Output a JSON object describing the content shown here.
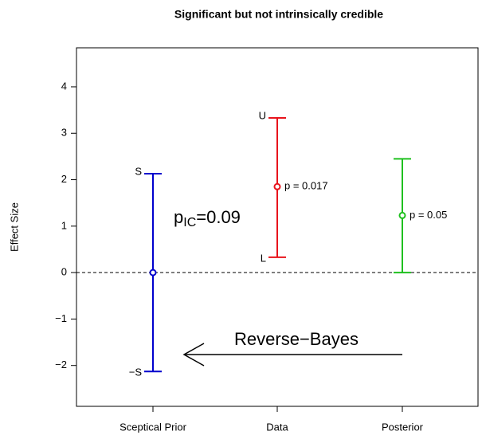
{
  "chart_data": {
    "type": "errorbar",
    "title": "Significant but not intrinsically credible",
    "ylabel": "Effect Size",
    "categories": [
      "Sceptical Prior",
      "Data",
      "Posterior"
    ],
    "values": [
      0,
      1.85,
      1.23
    ],
    "lower": [
      -2.13,
      0.33,
      0
    ],
    "upper": [
      2.13,
      3.33,
      2.45
    ],
    "colors": [
      "#0000cd",
      "#e8141c",
      "#1fc01f"
    ],
    "upper_labels": [
      "S",
      "U",
      null
    ],
    "lower_labels": [
      "−S",
      "L",
      null
    ],
    "point_labels": [
      null,
      "p = 0.017",
      "p = 0.05"
    ],
    "ylim": [
      -2.88,
      4.84
    ],
    "yticks": [
      {
        "value": -2,
        "label": "−2"
      },
      {
        "value": -1,
        "label": "−1"
      },
      0,
      1,
      2,
      3,
      4
    ],
    "hline": 0,
    "pic_annotation": {
      "text": "p",
      "subscript": "IC",
      "suffix": "=0.09"
    },
    "arrow_annotation": "Reverse−Bayes"
  }
}
